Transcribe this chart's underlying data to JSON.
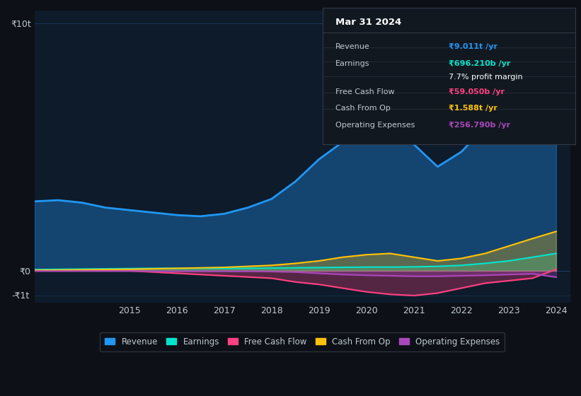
{
  "bg_color": "#0d1117",
  "plot_bg_color": "#0d1b2a",
  "grid_color": "#1e3a5f",
  "text_color": "#c0c8d0",
  "years": [
    2013.0,
    2013.5,
    2014.0,
    2014.5,
    2015.0,
    2015.5,
    2016.0,
    2016.5,
    2017.0,
    2017.5,
    2018.0,
    2018.5,
    2019.0,
    2019.5,
    2020.0,
    2020.5,
    2021.0,
    2021.5,
    2022.0,
    2022.5,
    2023.0,
    2023.5,
    2024.0
  ],
  "revenue": [
    2.8,
    2.85,
    2.75,
    2.55,
    2.45,
    2.35,
    2.25,
    2.2,
    2.3,
    2.55,
    2.9,
    3.6,
    4.5,
    5.2,
    5.5,
    5.4,
    5.1,
    4.2,
    4.8,
    5.8,
    7.2,
    8.5,
    9.0
  ],
  "earnings": [
    0.05,
    0.06,
    0.07,
    0.08,
    0.09,
    0.1,
    0.1,
    0.1,
    0.1,
    0.1,
    0.11,
    0.12,
    0.13,
    0.14,
    0.15,
    0.15,
    0.16,
    0.18,
    0.22,
    0.3,
    0.4,
    0.55,
    0.7
  ],
  "free_cash_flow": [
    0.0,
    0.0,
    0.0,
    0.0,
    0.0,
    -0.05,
    -0.1,
    -0.15,
    -0.2,
    -0.25,
    -0.3,
    -0.45,
    -0.55,
    -0.7,
    -0.85,
    -0.95,
    -1.0,
    -0.9,
    -0.7,
    -0.5,
    -0.4,
    -0.3,
    0.06
  ],
  "cash_from_op": [
    0.02,
    0.03,
    0.04,
    0.05,
    0.06,
    0.08,
    0.1,
    0.12,
    0.14,
    0.18,
    0.22,
    0.3,
    0.4,
    0.55,
    0.65,
    0.7,
    0.55,
    0.4,
    0.5,
    0.7,
    1.0,
    1.3,
    1.588
  ],
  "operating_expenses": [
    -0.01,
    -0.01,
    -0.01,
    -0.01,
    -0.01,
    -0.02,
    -0.02,
    -0.02,
    -0.02,
    -0.02,
    -0.03,
    -0.05,
    -0.1,
    -0.15,
    -0.18,
    -0.2,
    -0.22,
    -0.22,
    -0.2,
    -0.18,
    -0.15,
    -0.12,
    -0.257
  ],
  "revenue_color": "#2196f3",
  "earnings_color": "#00e5cc",
  "free_cash_flow_color": "#ff4081",
  "cash_from_op_color": "#ffc107",
  "operating_expenses_color": "#ab47bc",
  "ylim_min": -1.3,
  "ylim_max": 10.5,
  "ytick_labels": [
    "₹0",
    "₹10t"
  ],
  "y_extra_label": "-₹1t",
  "y_extra_val": -1.0,
  "x_min": 2013.0,
  "x_max": 2024.3,
  "xtick_years": [
    2015,
    2016,
    2017,
    2018,
    2019,
    2020,
    2021,
    2022,
    2023,
    2024
  ],
  "tooltip": {
    "title": "Mar 31 2024",
    "rows": [
      {
        "label": "Revenue",
        "value": "₹9.011t /yr",
        "value_color": "#2196f3"
      },
      {
        "label": "Earnings",
        "value": "₹696.210b /yr",
        "value_color": "#00e5cc"
      },
      {
        "label": "",
        "value": "7.7% profit margin",
        "value_color": "#ffffff"
      },
      {
        "label": "Free Cash Flow",
        "value": "₹59.050b /yr",
        "value_color": "#ff4081"
      },
      {
        "label": "Cash From Op",
        "value": "₹1.588t /yr",
        "value_color": "#ffc107"
      },
      {
        "label": "Operating Expenses",
        "value": "₹256.790b /yr",
        "value_color": "#ab47bc"
      }
    ]
  },
  "legend_items": [
    {
      "label": "Revenue",
      "color": "#2196f3"
    },
    {
      "label": "Earnings",
      "color": "#00e5cc"
    },
    {
      "label": "Free Cash Flow",
      "color": "#ff4081"
    },
    {
      "label": "Cash From Op",
      "color": "#ffc107"
    },
    {
      "label": "Operating Expenses",
      "color": "#ab47bc"
    }
  ]
}
